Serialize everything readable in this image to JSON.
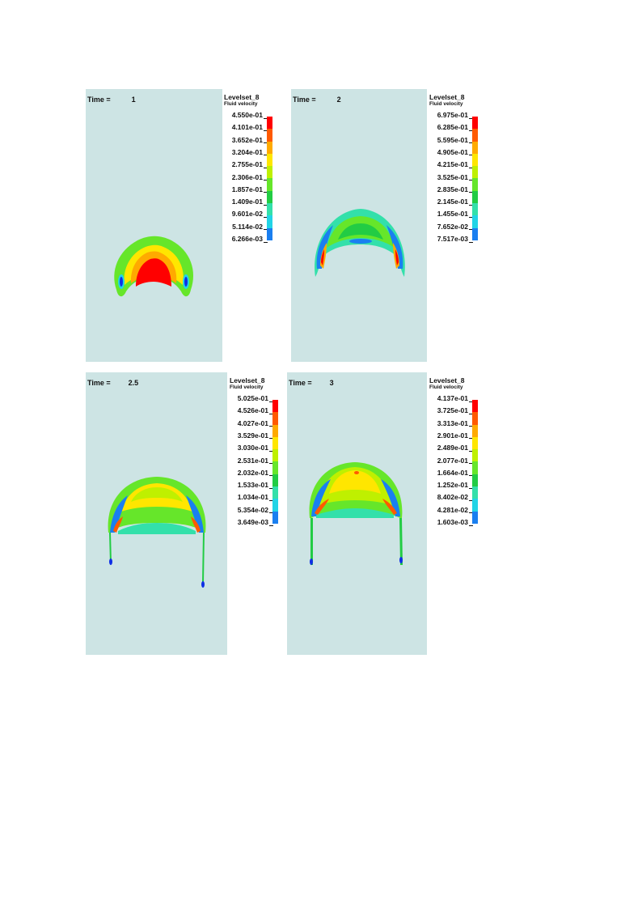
{
  "colors": {
    "panel_bg": "#cde4e4",
    "scale": [
      "#ff0000",
      "#ff5a00",
      "#ffaa00",
      "#ffe600",
      "#bff000",
      "#66e62a",
      "#22cc44",
      "#33e0aa",
      "#22d4e6",
      "#1a7ff0",
      "#0f2fe6"
    ]
  },
  "panels": [
    {
      "time_label": "Time =",
      "time_value": "1",
      "legend_title": "Levelset_8",
      "legend_subtitle": "Fluid velocity",
      "ticks": [
        "4.550e-01",
        "4.101e-01",
        "3.652e-01",
        "3.204e-01",
        "2.755e-01",
        "2.306e-01",
        "1.857e-01",
        "1.409e-01",
        "9.601e-02",
        "5.114e-02",
        "6.266e-03"
      ]
    },
    {
      "time_label": "Time =",
      "time_value": "2",
      "legend_title": "Levelset_8",
      "legend_subtitle": "Fluid velocity",
      "ticks": [
        "6.975e-01",
        "6.285e-01",
        "5.595e-01",
        "4.905e-01",
        "4.215e-01",
        "3.525e-01",
        "2.835e-01",
        "2.145e-01",
        "1.455e-01",
        "7.652e-02",
        "7.517e-03"
      ]
    },
    {
      "time_label": "Time =",
      "time_value": "2.5",
      "legend_title": "Levelset_8",
      "legend_subtitle": "Fluid velocity",
      "ticks": [
        "5.025e-01",
        "4.526e-01",
        "4.027e-01",
        "3.529e-01",
        "3.030e-01",
        "2.531e-01",
        "2.032e-01",
        "1.533e-01",
        "1.034e-01",
        "5.354e-02",
        "3.649e-03"
      ]
    },
    {
      "time_label": "Time =",
      "time_value": "3",
      "legend_title": "Levelset_8",
      "legend_subtitle": "Fluid velocity",
      "ticks": [
        "4.137e-01",
        "3.725e-01",
        "3.313e-01",
        "2.901e-01",
        "2.489e-01",
        "2.077e-01",
        "1.664e-01",
        "1.252e-01",
        "8.402e-02",
        "4.281e-02",
        "1.603e-03"
      ]
    }
  ]
}
